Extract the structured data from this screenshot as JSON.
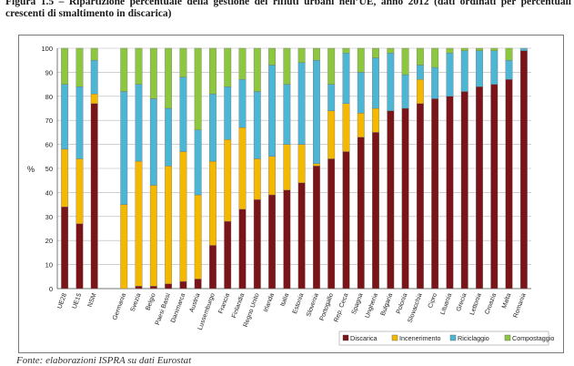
{
  "figure": {
    "caption": "Figura 1.5 – Ripartizione percentuale della gestione dei rifiuti urbani nell’UE, anno 2012 (dati ordinati per percentuali crescenti di smaltimento in discarica)",
    "source": "Fonte: elaborazioni ISPRA su dati Eurostat"
  },
  "chart_data": {
    "type": "bar",
    "stacked": true,
    "title": "",
    "xlabel": "",
    "ylabel": "%",
    "ylim": [
      0,
      100
    ],
    "yticks": [
      0,
      10,
      20,
      30,
      40,
      50,
      60,
      70,
      80,
      90,
      100
    ],
    "grid": true,
    "legend_position": "bottom-right",
    "categories": [
      "UE28",
      "UE15",
      "NSM",
      "",
      "Germania",
      "Svezia",
      "Belgio",
      "Paesi Bassi",
      "Danimarca",
      "Austria",
      "Lussemburgo",
      "Francia",
      "Finlandia",
      "Regno Unito",
      "Irlanda",
      "Italia",
      "Estonia",
      "Slovenia",
      "Portogallo",
      "Rep. Ceca",
      "Spagna",
      "Ungheria",
      "Bulgaria",
      "Polonia",
      "Slovacchia",
      "Cipro",
      "Lituania",
      "Grecia",
      "Lettonia",
      "Croazia",
      "Malta",
      "Romania"
    ],
    "series": [
      {
        "name": "Discarica",
        "color": "#7b1418",
        "values": [
          34,
          27,
          77,
          null,
          0,
          1,
          1,
          2,
          3,
          4,
          18,
          28,
          33,
          37,
          39,
          41,
          44,
          51,
          54,
          57,
          63,
          65,
          74,
          75,
          77,
          79,
          80,
          82,
          84,
          85,
          87,
          99
        ]
      },
      {
        "name": "Incenerimento",
        "color": "#f5b800",
        "values": [
          24,
          27,
          4,
          null,
          35,
          52,
          42,
          49,
          54,
          35,
          35,
          34,
          34,
          17,
          16,
          19,
          16,
          1,
          20,
          20,
          10,
          10,
          0,
          0,
          10,
          0,
          0,
          0,
          0,
          0,
          0,
          0
        ]
      },
      {
        "name": "Riciclaggio",
        "color": "#4cb6d4",
        "values": [
          27,
          30,
          14,
          null,
          47,
          32,
          36,
          24,
          31,
          27,
          28,
          22,
          20,
          28,
          38,
          25,
          34,
          43,
          11,
          21,
          17,
          21,
          24,
          14,
          6,
          13,
          18,
          17,
          15,
          14,
          8,
          1
        ]
      },
      {
        "name": "Compostaggio",
        "color": "#8dc63f",
        "values": [
          15,
          16,
          5,
          null,
          18,
          15,
          21,
          25,
          12,
          34,
          19,
          16,
          13,
          18,
          7,
          15,
          6,
          5,
          15,
          2,
          10,
          4,
          2,
          11,
          7,
          8,
          2,
          1,
          1,
          1,
          5,
          0
        ]
      }
    ]
  }
}
